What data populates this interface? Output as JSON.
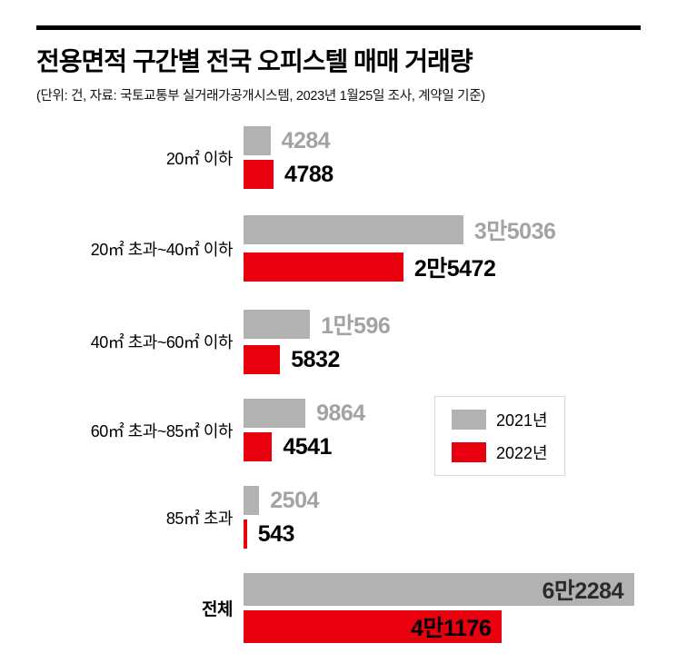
{
  "header": {
    "title": "전용면적 구간별 전국 오피스텔 매매 거래량",
    "subtitle": "(단위: 건, 자료: 국토교통부 실거래가공개시스템, 2023년 1월25일 조사, 계약일 기준)"
  },
  "chart_data": {
    "type": "bar",
    "orientation": "horizontal",
    "unit": "건",
    "title": "전용면적 구간별 전국 오피스텔 매매 거래량",
    "categories": [
      "20㎡ 이하",
      "20㎡ 초과~40㎡ 이하",
      "40㎡ 초과~60㎡ 이하",
      "60㎡ 초과~85㎡ 이하",
      "85㎡ 초과",
      "전체"
    ],
    "series": [
      {
        "name": "2021년",
        "color": "#b2b2b2",
        "values": [
          4284,
          35036,
          10596,
          9864,
          2504,
          62284
        ]
      },
      {
        "name": "2022년",
        "color": "#e8000f",
        "values": [
          4788,
          25472,
          5832,
          4541,
          543,
          41176
        ]
      }
    ],
    "value_labels": [
      [
        "4284",
        "3만5036",
        "1만596",
        "9864",
        "2504",
        "6만2284"
      ],
      [
        "4788",
        "2만5472",
        "5832",
        "4541",
        "543",
        "4만1176"
      ]
    ],
    "xmax": 62284,
    "legend_position": "middle-right",
    "grid": false
  }
}
